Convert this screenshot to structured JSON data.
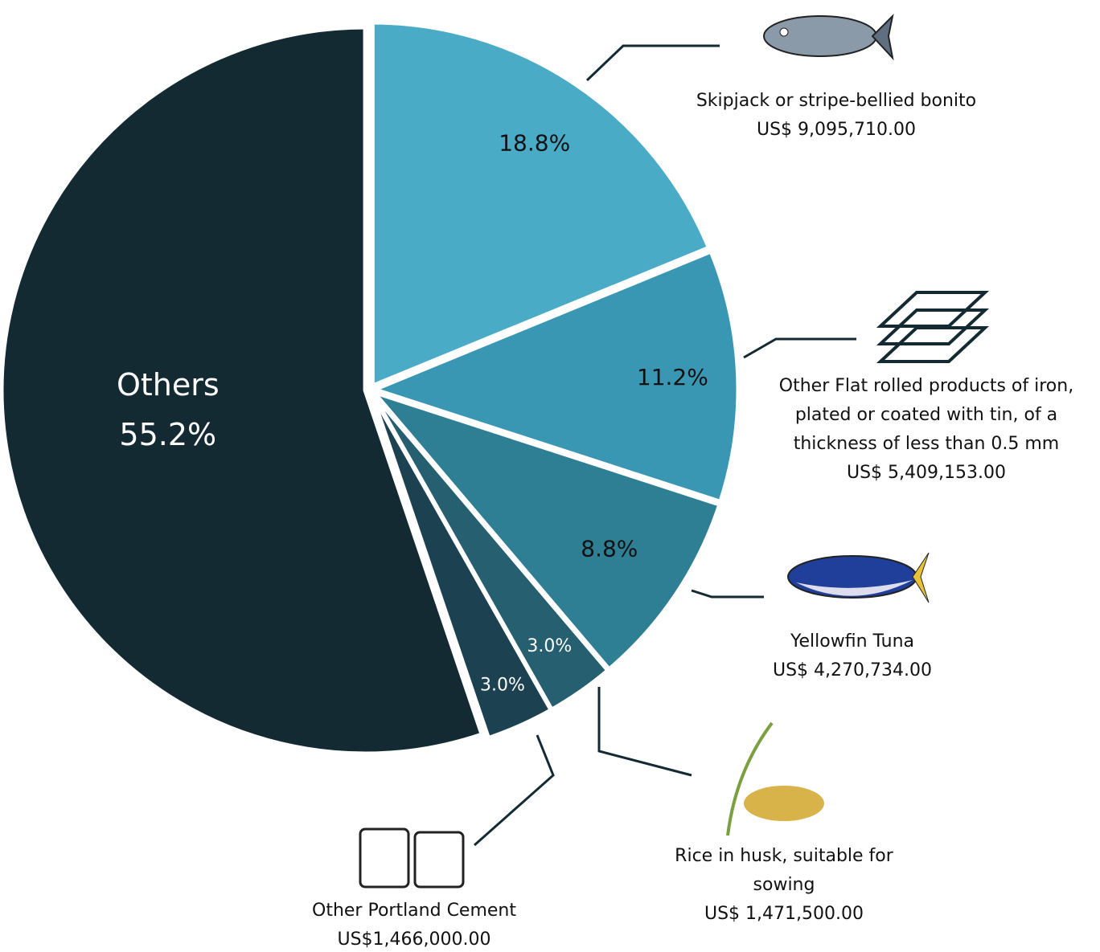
{
  "chart_data": {
    "type": "pie",
    "categories": [
      "Skipjack or stripe-bellied bonito",
      "Other Flat rolled products of iron, plated or coated with tin, of a thickness of less than 0.5 mm",
      "Yellowfin Tuna",
      "Rice in husk, suitable for sowing",
      "Other Portland Cement",
      "Others"
    ],
    "values": [
      18.8,
      11.2,
      8.8,
      3.0,
      3.0,
      55.2
    ],
    "value_labels": [
      "18.8%",
      "11.2%",
      "8.8%",
      "3.0%",
      "3.0%",
      "55.2%"
    ],
    "amounts": [
      9095710,
      5409153,
      4270734,
      1471500,
      1466000,
      null
    ],
    "amount_labels": [
      "US$ 9,095,710.00",
      "US$ 5,409,153.00",
      "US$ 4,270,734.00",
      "US$ 1,471,500.00",
      "US$1,466,000.00",
      null
    ],
    "colors": [
      "#4aabc7",
      "#3a97b3",
      "#2e7f94",
      "#255f70",
      "#1c4150",
      "#142a33"
    ]
  }
}
